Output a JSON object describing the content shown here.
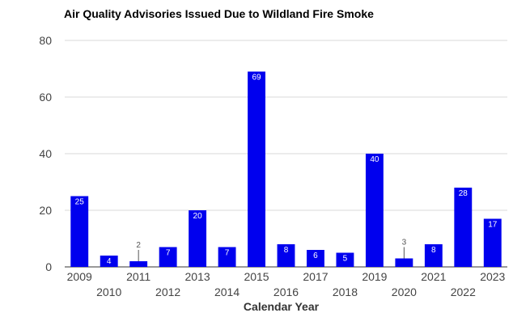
{
  "chart_data": {
    "type": "bar",
    "title": "Air Quality Advisories Issued Due to Wildland Fire Smoke",
    "xlabel": "Calendar Year",
    "ylabel": "",
    "ylim": [
      0,
      80
    ],
    "yticks": [
      0,
      20,
      40,
      60,
      80
    ],
    "grid": true,
    "legend": "none",
    "bar_color": "#0000ee",
    "categories": [
      "2009",
      "2010",
      "2011",
      "2012",
      "2013",
      "2014",
      "2015",
      "2016",
      "2017",
      "2018",
      "2019",
      "2020",
      "2021",
      "2022",
      "2023"
    ],
    "values": [
      25,
      4,
      2,
      7,
      20,
      7,
      69,
      8,
      6,
      5,
      40,
      3,
      8,
      28,
      17
    ]
  }
}
